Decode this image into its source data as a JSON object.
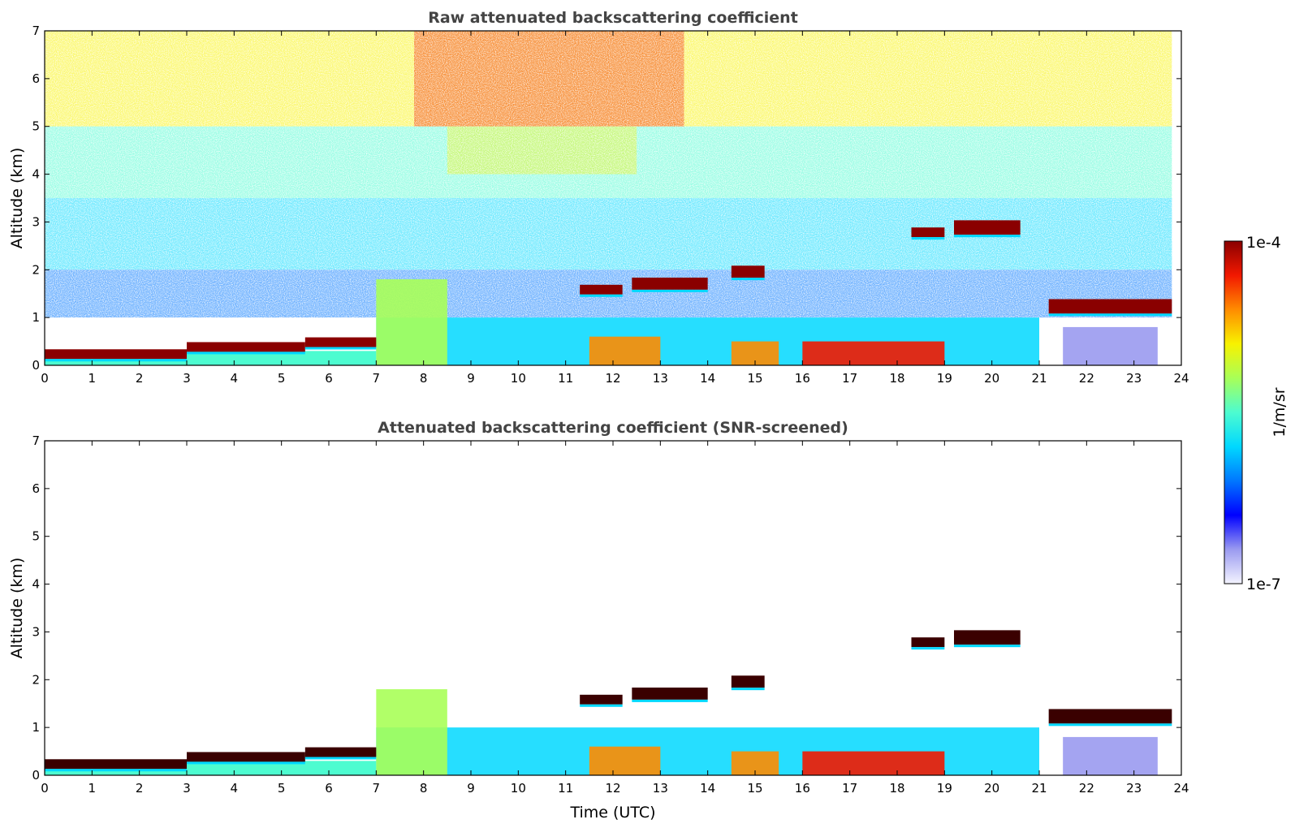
{
  "colors": {
    "colormap": [
      "#f4f4ff",
      "#9a9af0",
      "#0000ff",
      "#0077ff",
      "#00d8ff",
      "#4dfcd0",
      "#a8ff58",
      "#f8f200",
      "#ff8c00",
      "#f21800",
      "#8a0000"
    ],
    "saturated": "#3a0000"
  },
  "colorbar": {
    "top_label": "1e-4",
    "bottom_label": "1e-7",
    "unit_label": "1/m/sr"
  },
  "chart_data": [
    {
      "type": "heatmap",
      "title": "Raw attenuated backscattering coefficient",
      "xlabel": "",
      "ylabel": "Altitude (km)",
      "xlim": [
        0,
        24
      ],
      "ylim": [
        0,
        7
      ],
      "xticks": [
        "0",
        "1",
        "2",
        "3",
        "4",
        "5",
        "6",
        "7",
        "8",
        "9",
        "10",
        "11",
        "12",
        "13",
        "14",
        "15",
        "16",
        "17",
        "18",
        "19",
        "20",
        "21",
        "22",
        "23",
        "24"
      ],
      "yticks": [
        "0",
        "1",
        "2",
        "3",
        "4",
        "5",
        "6",
        "7"
      ],
      "data_end_time": 23.8,
      "grid": false,
      "scale": "log",
      "cloud_base_layers": [
        {
          "t": [
            0.0,
            3.0
          ],
          "alt": [
            0.2,
            0.25
          ],
          "level": 1.0
        },
        {
          "t": [
            3.0,
            5.5
          ],
          "alt": [
            0.35,
            0.4
          ],
          "level": 1.0
        },
        {
          "t": [
            5.5,
            7.0
          ],
          "alt": [
            0.45,
            0.5
          ],
          "level": 1.0
        },
        {
          "t": [
            11.3,
            12.2
          ],
          "alt": [
            1.55,
            1.6
          ],
          "level": 0.95
        },
        {
          "t": [
            12.4,
            14.0
          ],
          "alt": [
            1.65,
            1.75
          ],
          "level": 1.0
        },
        {
          "t": [
            14.5,
            15.2
          ],
          "alt": [
            1.9,
            2.0
          ],
          "level": 0.95
        },
        {
          "t": [
            18.3,
            19.0
          ],
          "alt": [
            2.75,
            2.8
          ],
          "level": 0.95
        },
        {
          "t": [
            19.2,
            20.6
          ],
          "alt": [
            2.8,
            2.95
          ],
          "level": 1.0
        },
        {
          "t": [
            21.2,
            23.8
          ],
          "alt": [
            1.3,
            1.15
          ],
          "level": 1.0
        }
      ],
      "aerosol_regions": [
        {
          "t": [
            7.0,
            8.5
          ],
          "alt": [
            0.0,
            1.8
          ],
          "level": 0.55
        },
        {
          "t": [
            11.5,
            13.0
          ],
          "alt": [
            0.0,
            0.6
          ],
          "level": 0.8
        },
        {
          "t": [
            14.5,
            15.5
          ],
          "alt": [
            0.0,
            0.5
          ],
          "level": 0.8
        },
        {
          "t": [
            16.0,
            19.0
          ],
          "alt": [
            0.0,
            0.5
          ],
          "level": 0.85
        },
        {
          "t": [
            21.5,
            23.5
          ],
          "alt": [
            0.0,
            0.8
          ],
          "level": 0.12
        }
      ]
    },
    {
      "type": "heatmap",
      "title": "Attenuated backscattering coefficient (SNR-screened)",
      "xlabel": "Time (UTC)",
      "ylabel": "Altitude (km)",
      "xlim": [
        0,
        24
      ],
      "ylim": [
        0,
        7
      ],
      "xticks": [
        "0",
        "1",
        "2",
        "3",
        "4",
        "5",
        "6",
        "7",
        "8",
        "9",
        "10",
        "11",
        "12",
        "13",
        "14",
        "15",
        "16",
        "17",
        "18",
        "19",
        "20",
        "21",
        "22",
        "23",
        "24"
      ],
      "yticks": [
        "0",
        "1",
        "2",
        "3",
        "4",
        "5",
        "6",
        "7"
      ],
      "data_end_time": 23.8,
      "grid": false,
      "scale": "log"
    }
  ]
}
